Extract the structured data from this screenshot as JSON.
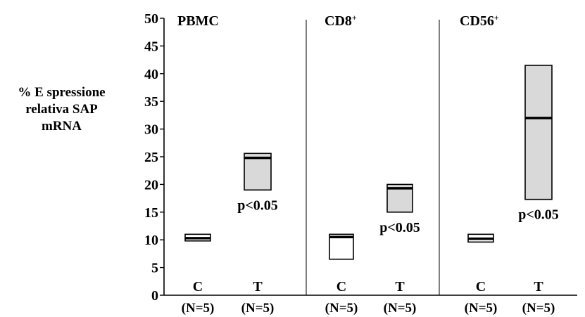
{
  "chart_data": {
    "type": "box",
    "ylabel_lines": [
      "% E spressione",
      "relativa SAP",
      "mRNA"
    ],
    "ylim": [
      0,
      50
    ],
    "yticks": [
      "0",
      "5",
      "10",
      "15",
      "20",
      "25",
      "30",
      "35",
      "40",
      "45",
      "50"
    ],
    "panels": [
      {
        "title": "PBMC",
        "title_sup": "",
        "groups": [
          {
            "label": "C",
            "n": "(N=5)",
            "low": 9.8,
            "high": 11.0,
            "median": 10.3,
            "fill": "#ffffff",
            "annotation": ""
          },
          {
            "label": "T",
            "n": "(N=5)",
            "low": 19.0,
            "high": 25.6,
            "median": 24.8,
            "fill": "#d9d9d9",
            "annotation": "p<0.05"
          }
        ]
      },
      {
        "title": "CD8",
        "title_sup": "+",
        "groups": [
          {
            "label": "C",
            "n": "(N=5)",
            "low": 6.5,
            "high": 11.0,
            "median": 10.5,
            "fill": "#ffffff",
            "annotation": ""
          },
          {
            "label": "T",
            "n": "(N=5)",
            "low": 15.0,
            "high": 20.0,
            "median": 19.3,
            "fill": "#d9d9d9",
            "annotation": "p<0.05"
          }
        ]
      },
      {
        "title": "CD56",
        "title_sup": "+",
        "groups": [
          {
            "label": "C",
            "n": "(N=5)",
            "low": 9.6,
            "high": 11.0,
            "median": 10.2,
            "fill": "#ffffff",
            "annotation": ""
          },
          {
            "label": "T",
            "n": "(N=5)",
            "low": 17.3,
            "high": 41.5,
            "median": 32.0,
            "fill": "#d9d9d9",
            "annotation": "p<0.05"
          }
        ]
      }
    ]
  }
}
